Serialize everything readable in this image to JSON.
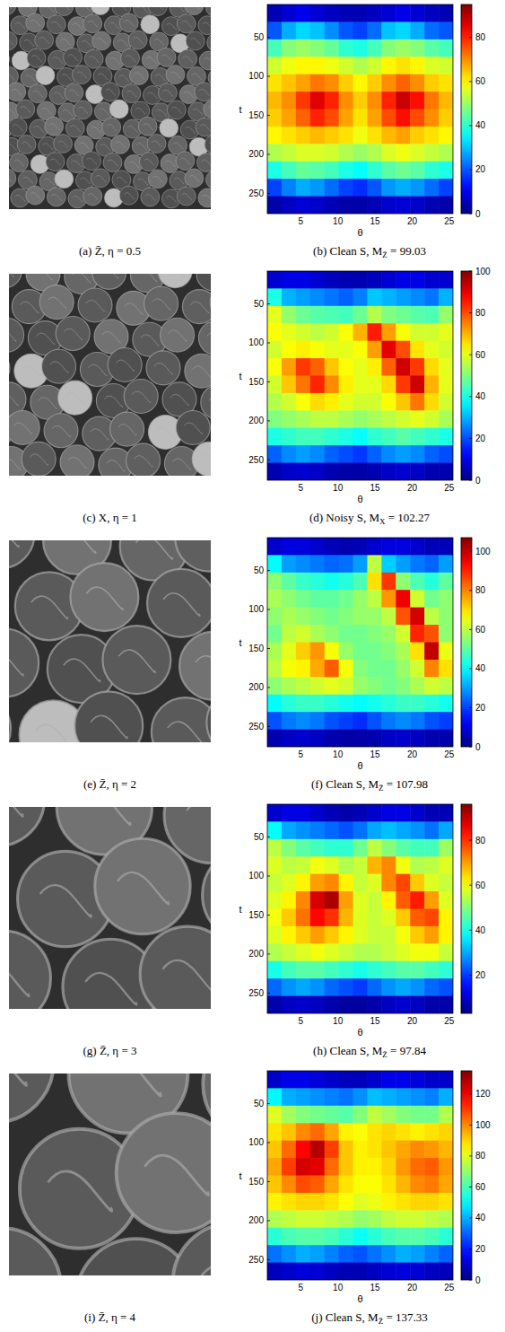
{
  "images": [
    {
      "caption": "(a) Z̄, η = 0.5"
    },
    {
      "caption": "(c) X, η = 1"
    },
    {
      "caption": "(e) Z̄, η = 2"
    },
    {
      "caption": "(g) Z̄, η = 3"
    },
    {
      "caption": "(i) Z̄, η = 4"
    }
  ],
  "chart_data": [
    {
      "type": "heatmap",
      "caption": {
        "text": "(b) Clean S, M",
        "sub": "Z̄",
        "after": " = 99.03"
      },
      "xlabel": "θ",
      "ylabel": "t",
      "xlim": [
        0.5,
        25.5
      ],
      "ylim": [
        8,
        276
      ],
      "xticks": [
        5,
        10,
        15,
        20,
        25
      ],
      "yticks": [
        50,
        100,
        150,
        200,
        250
      ],
      "cells": [
        [
          5,
          8,
          10,
          8,
          6,
          5,
          5,
          6,
          8,
          10,
          8,
          6,
          5
        ],
        [
          20,
          28,
          32,
          30,
          25,
          20,
          18,
          22,
          30,
          32,
          28,
          22,
          20
        ],
        [
          42,
          48,
          50,
          48,
          45,
          40,
          38,
          42,
          48,
          50,
          48,
          44,
          42
        ],
        [
          55,
          58,
          60,
          60,
          58,
          55,
          52,
          55,
          60,
          62,
          60,
          56,
          55
        ],
        [
          62,
          65,
          68,
          72,
          70,
          64,
          60,
          64,
          70,
          74,
          70,
          64,
          62
        ],
        [
          66,
          70,
          78,
          86,
          80,
          70,
          64,
          70,
          80,
          88,
          82,
          72,
          66
        ],
        [
          64,
          68,
          74,
          80,
          76,
          68,
          62,
          68,
          76,
          82,
          76,
          70,
          64
        ],
        [
          60,
          62,
          64,
          66,
          64,
          62,
          58,
          62,
          66,
          68,
          64,
          62,
          60
        ],
        [
          52,
          54,
          56,
          56,
          55,
          52,
          50,
          52,
          56,
          58,
          56,
          54,
          52
        ],
        [
          38,
          42,
          45,
          44,
          42,
          38,
          36,
          40,
          44,
          46,
          44,
          40,
          38
        ],
        [
          18,
          24,
          28,
          26,
          22,
          18,
          16,
          20,
          26,
          28,
          26,
          22,
          18
        ],
        [
          4,
          6,
          8,
          7,
          5,
          4,
          4,
          5,
          7,
          8,
          7,
          5,
          4
        ]
      ],
      "colorbar": {
        "range": [
          0,
          95
        ],
        "ticks": [
          0,
          20,
          40,
          60,
          80
        ]
      }
    },
    {
      "type": "heatmap",
      "caption": {
        "text": "(d) Noisy S, M",
        "sub": "X",
        "after": " = 102.27"
      },
      "xlabel": "θ",
      "ylabel": "t",
      "xlim": [
        0.5,
        25.5
      ],
      "ylim": [
        8,
        276
      ],
      "xticks": [
        5,
        10,
        15,
        20,
        25
      ],
      "yticks": [
        50,
        100,
        150,
        200,
        250
      ],
      "cells": [
        [
          8,
          10,
          10,
          8,
          6,
          5,
          5,
          6,
          8,
          10,
          10,
          8,
          8
        ],
        [
          40,
          30,
          28,
          26,
          24,
          22,
          25,
          32,
          30,
          28,
          26,
          24,
          30
        ],
        [
          60,
          52,
          48,
          46,
          45,
          44,
          48,
          55,
          50,
          48,
          46,
          45,
          52
        ],
        [
          62,
          60,
          58,
          56,
          58,
          62,
          70,
          85,
          72,
          62,
          58,
          58,
          60
        ],
        [
          58,
          62,
          64,
          62,
          60,
          60,
          62,
          72,
          90,
          80,
          65,
          60,
          58
        ],
        [
          62,
          72,
          82,
          78,
          68,
          62,
          60,
          64,
          78,
          92,
          82,
          66,
          60
        ],
        [
          58,
          68,
          76,
          84,
          74,
          64,
          60,
          60,
          66,
          82,
          92,
          70,
          60
        ],
        [
          55,
          58,
          62,
          66,
          64,
          60,
          58,
          58,
          62,
          68,
          76,
          66,
          58
        ],
        [
          50,
          52,
          54,
          56,
          56,
          54,
          52,
          54,
          56,
          58,
          60,
          58,
          54
        ],
        [
          40,
          42,
          44,
          44,
          42,
          40,
          38,
          42,
          44,
          46,
          44,
          42,
          40
        ],
        [
          22,
          26,
          28,
          26,
          22,
          20,
          18,
          22,
          26,
          28,
          26,
          22,
          20
        ],
        [
          5,
          7,
          8,
          7,
          5,
          4,
          4,
          5,
          7,
          8,
          7,
          5,
          5
        ]
      ],
      "colorbar": {
        "range": [
          0,
          100
        ],
        "ticks": [
          0,
          20,
          40,
          60,
          80,
          100
        ]
      }
    },
    {
      "type": "heatmap",
      "caption": {
        "text": "(f) Clean S, M",
        "sub": "Z̄",
        "after": " = 107.98"
      },
      "xlabel": "θ",
      "ylabel": "t",
      "xlim": [
        0.5,
        25.5
      ],
      "ylim": [
        8,
        276
      ],
      "xticks": [
        5,
        10,
        15,
        20,
        25
      ],
      "yticks": [
        50,
        100,
        150,
        200,
        250
      ],
      "cells": [
        [
          8,
          10,
          10,
          8,
          6,
          5,
          6,
          8,
          10,
          10,
          8,
          6,
          6
        ],
        [
          40,
          30,
          28,
          26,
          24,
          25,
          30,
          60,
          35,
          30,
          26,
          24,
          30
        ],
        [
          55,
          50,
          46,
          44,
          42,
          44,
          48,
          70,
          88,
          55,
          48,
          44,
          50
        ],
        [
          58,
          55,
          52,
          50,
          50,
          52,
          56,
          60,
          78,
          95,
          62,
          52,
          55
        ],
        [
          55,
          58,
          56,
          54,
          52,
          54,
          56,
          56,
          60,
          85,
          98,
          60,
          55
        ],
        [
          52,
          60,
          62,
          58,
          55,
          52,
          52,
          54,
          56,
          62,
          90,
          85,
          55
        ],
        [
          58,
          64,
          72,
          78,
          66,
          56,
          52,
          52,
          54,
          58,
          70,
          100,
          65
        ],
        [
          60,
          66,
          68,
          76,
          84,
          66,
          54,
          52,
          52,
          56,
          62,
          80,
          70
        ],
        [
          55,
          58,
          60,
          62,
          64,
          62,
          56,
          54,
          52,
          54,
          58,
          62,
          60
        ],
        [
          40,
          44,
          46,
          46,
          44,
          42,
          40,
          42,
          44,
          46,
          46,
          44,
          42
        ],
        [
          22,
          26,
          28,
          26,
          22,
          20,
          18,
          22,
          26,
          28,
          26,
          22,
          20
        ],
        [
          5,
          7,
          8,
          7,
          5,
          4,
          4,
          5,
          7,
          8,
          7,
          5,
          5
        ]
      ],
      "colorbar": {
        "range": [
          0,
          107
        ],
        "ticks": [
          0,
          20,
          40,
          60,
          80,
          100
        ]
      }
    },
    {
      "type": "heatmap",
      "caption": {
        "text": "(h) Clean S, M",
        "sub": "Z̄",
        "after": " = 97.84"
      },
      "xlabel": "θ",
      "ylabel": "t",
      "xlim": [
        0.5,
        25.5
      ],
      "ylim": [
        8,
        276
      ],
      "xticks": [
        5,
        10,
        15,
        20,
        25
      ],
      "yticks": [
        50,
        100,
        150,
        200,
        250
      ],
      "cells": [
        [
          10,
          12,
          12,
          10,
          8,
          7,
          8,
          10,
          12,
          12,
          10,
          8,
          8
        ],
        [
          38,
          30,
          28,
          26,
          24,
          22,
          25,
          30,
          32,
          30,
          28,
          25,
          30
        ],
        [
          55,
          50,
          46,
          44,
          42,
          42,
          48,
          55,
          50,
          46,
          44,
          44,
          52
        ],
        [
          58,
          55,
          56,
          60,
          58,
          54,
          56,
          68,
          72,
          60,
          54,
          55,
          58
        ],
        [
          56,
          58,
          62,
          70,
          72,
          62,
          56,
          58,
          72,
          78,
          66,
          58,
          56
        ],
        [
          58,
          62,
          72,
          88,
          92,
          70,
          58,
          56,
          62,
          76,
          82,
          70,
          58
        ],
        [
          60,
          66,
          74,
          84,
          80,
          68,
          58,
          56,
          58,
          66,
          76,
          78,
          62
        ],
        [
          58,
          62,
          66,
          70,
          66,
          62,
          58,
          56,
          56,
          60,
          66,
          70,
          62
        ],
        [
          54,
          56,
          58,
          60,
          58,
          56,
          54,
          54,
          56,
          58,
          60,
          60,
          56
        ],
        [
          40,
          44,
          46,
          46,
          44,
          42,
          40,
          42,
          44,
          46,
          46,
          44,
          42
        ],
        [
          24,
          28,
          30,
          28,
          24,
          22,
          20,
          24,
          28,
          30,
          28,
          24,
          22
        ],
        [
          7,
          9,
          10,
          9,
          7,
          6,
          6,
          7,
          9,
          10,
          9,
          7,
          7
        ]
      ],
      "colorbar": {
        "range": [
          3,
          96
        ],
        "ticks": [
          20,
          40,
          60,
          80
        ]
      }
    },
    {
      "type": "heatmap",
      "caption": {
        "text": "(j) Clean S, M",
        "sub": "Z̄",
        "after": " = 137.33"
      },
      "xlabel": "θ",
      "ylabel": "t",
      "xlim": [
        0.5,
        25.5
      ],
      "ylim": [
        8,
        276
      ],
      "xticks": [
        5,
        10,
        15,
        20,
        25
      ],
      "yticks": [
        50,
        100,
        150,
        200,
        250
      ],
      "cells": [
        [
          10,
          14,
          14,
          12,
          10,
          8,
          8,
          10,
          14,
          14,
          12,
          10,
          10
        ],
        [
          50,
          40,
          38,
          36,
          34,
          32,
          36,
          42,
          40,
          38,
          36,
          34,
          40
        ],
        [
          80,
          72,
          68,
          66,
          64,
          62,
          68,
          76,
          72,
          68,
          66,
          66,
          74
        ],
        [
          88,
          92,
          100,
          104,
          96,
          86,
          84,
          88,
          90,
          88,
          86,
          88,
          90
        ],
        [
          92,
          104,
          118,
          128,
          110,
          92,
          86,
          88,
          92,
          96,
          100,
          98,
          94
        ],
        [
          96,
          110,
          124,
          122,
          104,
          92,
          86,
          86,
          90,
          98,
          104,
          106,
          98
        ],
        [
          92,
          100,
          108,
          106,
          96,
          88,
          84,
          84,
          88,
          94,
          100,
          102,
          96
        ],
        [
          86,
          88,
          90,
          90,
          88,
          84,
          80,
          82,
          86,
          88,
          90,
          90,
          88
        ],
        [
          74,
          76,
          78,
          78,
          76,
          74,
          70,
          72,
          76,
          78,
          78,
          76,
          74
        ],
        [
          56,
          60,
          62,
          62,
          60,
          56,
          52,
          56,
          60,
          62,
          62,
          60,
          56
        ],
        [
          32,
          36,
          40,
          38,
          34,
          30,
          28,
          32,
          36,
          40,
          38,
          34,
          30
        ],
        [
          8,
          10,
          12,
          11,
          9,
          7,
          7,
          9,
          11,
          12,
          11,
          9,
          8
        ]
      ],
      "colorbar": {
        "range": [
          0,
          135
        ],
        "ticks": [
          0,
          20,
          40,
          60,
          80,
          100,
          120
        ]
      }
    }
  ]
}
